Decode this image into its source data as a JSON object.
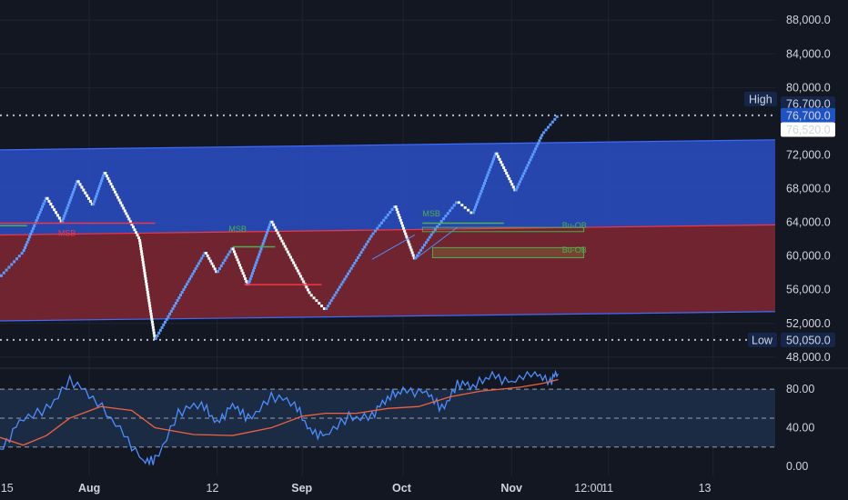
{
  "colors": {
    "background": "#131722",
    "grid": "#1f2430",
    "upper_band": "#2a4bbd",
    "lower_band": "#7a2631",
    "band_line": "#3f6bff",
    "line": "#4d8dff",
    "bull": "#5b9bff",
    "bear": "#ffffff",
    "ma": "#f2613d",
    "osc_fill": "#1b2b44",
    "price_label": "#1e53c6",
    "label_dark": "#15264a",
    "msb_green": "#4caf50",
    "msb_red": "#f23645"
  },
  "chart_data": [
    {
      "type": "renko",
      "y_axis": {
        "ticks": [
          "88,000.0",
          "84,000.0",
          "80,000.0",
          "72,000.0",
          "68,000.0",
          "64,000.0",
          "60,000.0",
          "56,000.0",
          "52,000.0",
          "48,000.0"
        ],
        "tick_values": [
          88000,
          84000,
          80000,
          72000,
          68000,
          64000,
          60000,
          56000,
          52000,
          48000
        ],
        "ylim": [
          46900,
          90400
        ]
      },
      "x_axis": {
        "ticks": [
          {
            "label": "15",
            "bold": false
          },
          {
            "label": "Aug",
            "bold": true
          },
          {
            "label": "12",
            "bold": false
          },
          {
            "label": "Sep",
            "bold": true
          },
          {
            "label": "Oct",
            "bold": true
          },
          {
            "label": "Nov",
            "bold": true
          },
          {
            "label": "12:00",
            "bold": false
          },
          {
            "label": "11",
            "bold": false
          },
          {
            "label": "13",
            "bold": false
          }
        ]
      },
      "price_levels": {
        "high": {
          "label": "High",
          "value": "76,700.0",
          "y": 76700
        },
        "current": {
          "value": "76,700.0",
          "y": 76700
        },
        "previous": {
          "value": "76,520.0",
          "y": 76520
        },
        "low": {
          "label": "Low",
          "value": "50,050.0",
          "y": 50050
        }
      },
      "channel": {
        "upper_start": 72600,
        "upper_end": 73800,
        "mid_start": 62500,
        "mid_end": 63700,
        "lower_start": 52300,
        "lower_end": 53400
      },
      "renko_path": [
        [
          0,
          57500
        ],
        [
          0.03,
          60500
        ],
        [
          0.06,
          67000
        ],
        [
          0.08,
          64000
        ],
        [
          0.1,
          69000
        ],
        [
          0.12,
          66000
        ],
        [
          0.135,
          70000
        ],
        [
          0.18,
          62000
        ],
        [
          0.2,
          50050
        ],
        [
          0.24,
          56500
        ],
        [
          0.265,
          60500
        ],
        [
          0.28,
          58000
        ],
        [
          0.3,
          61000
        ],
        [
          0.32,
          56500
        ],
        [
          0.35,
          64200
        ],
        [
          0.4,
          55500
        ],
        [
          0.42,
          53600
        ],
        [
          0.48,
          62500
        ],
        [
          0.51,
          66000
        ],
        [
          0.535,
          59600
        ],
        [
          0.56,
          63000
        ],
        [
          0.59,
          66500
        ],
        [
          0.61,
          65000
        ],
        [
          0.64,
          72300
        ],
        [
          0.665,
          67700
        ],
        [
          0.7,
          74500
        ],
        [
          0.72,
          76700
        ]
      ],
      "annotations": [
        {
          "label": "MSB",
          "color": "msb_red",
          "at": [
            0.075,
            62400
          ]
        },
        {
          "label": "MSB",
          "color": "msb_green",
          "at": [
            0.295,
            62900
          ]
        },
        {
          "label": "MSB",
          "color": "msb_green",
          "at": [
            0.545,
            64700
          ]
        },
        {
          "label": "Bu-OB",
          "color": "msb_green",
          "at": [
            0.725,
            60400
          ]
        },
        {
          "label": "Bu-OB",
          "color": "msb_green",
          "at": [
            0.725,
            63300
          ]
        }
      ]
    },
    {
      "type": "line",
      "y_axis": {
        "ticks": [
          "80.00",
          "40.00",
          "0.00"
        ],
        "tick_values": [
          80,
          40,
          0
        ],
        "ylim": [
          0,
          98
        ]
      },
      "guides": [
        80,
        50,
        20
      ],
      "series": [
        {
          "role": "oscillator",
          "values": [
            [
              0,
              18
            ],
            [
              0.025,
              45
            ],
            [
              0.06,
              58
            ],
            [
              0.09,
              92
            ],
            [
              0.12,
              68
            ],
            [
              0.155,
              42
            ],
            [
              0.185,
              3
            ],
            [
              0.2,
              5
            ],
            [
              0.23,
              58
            ],
            [
              0.26,
              62
            ],
            [
              0.28,
              48
            ],
            [
              0.3,
              62
            ],
            [
              0.32,
              48
            ],
            [
              0.35,
              75
            ],
            [
              0.38,
              62
            ],
            [
              0.4,
              40
            ],
            [
              0.42,
              30
            ],
            [
              0.45,
              50
            ],
            [
              0.48,
              55
            ],
            [
              0.5,
              68
            ],
            [
              0.52,
              82
            ],
            [
              0.55,
              75
            ],
            [
              0.57,
              58
            ],
            [
              0.59,
              88
            ],
            [
              0.61,
              80
            ],
            [
              0.635,
              98
            ],
            [
              0.66,
              85
            ],
            [
              0.69,
              98
            ],
            [
              0.71,
              90
            ],
            [
              0.72,
              96
            ]
          ]
        },
        {
          "role": "moving_average",
          "values": [
            [
              0,
              30
            ],
            [
              0.03,
              22
            ],
            [
              0.06,
              32
            ],
            [
              0.09,
              50
            ],
            [
              0.13,
              62
            ],
            [
              0.17,
              58
            ],
            [
              0.2,
              40
            ],
            [
              0.25,
              33
            ],
            [
              0.3,
              32
            ],
            [
              0.35,
              40
            ],
            [
              0.39,
              52
            ],
            [
              0.42,
              55
            ],
            [
              0.46,
              55
            ],
            [
              0.5,
              60
            ],
            [
              0.54,
              62
            ],
            [
              0.58,
              72
            ],
            [
              0.62,
              78
            ],
            [
              0.67,
              82
            ],
            [
              0.7,
              86
            ],
            [
              0.72,
              90
            ]
          ]
        }
      ]
    }
  ]
}
